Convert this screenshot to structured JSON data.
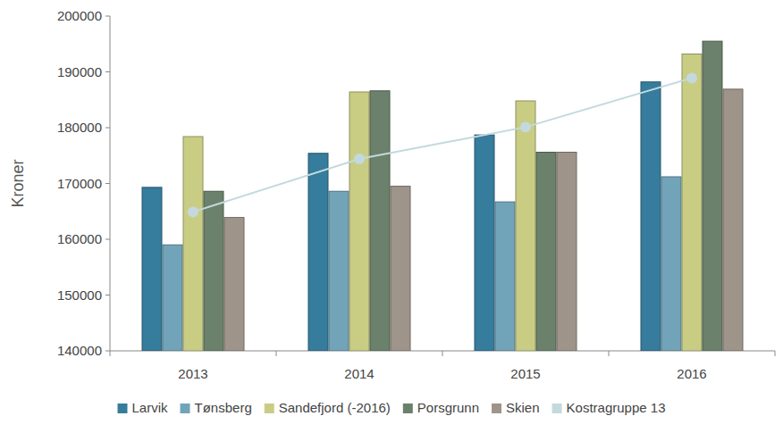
{
  "chart_data": {
    "type": "bar",
    "y_label": "Kroner",
    "categories": [
      "2013",
      "2014",
      "2015",
      "2016"
    ],
    "series": [
      {
        "name": "Larvik",
        "color": "#367c9c",
        "values": [
          169300,
          175400,
          178700,
          188200
        ]
      },
      {
        "name": "Tønsberg",
        "color": "#72a4b9",
        "values": [
          159000,
          168600,
          166700,
          171200
        ]
      },
      {
        "name": "Sandefjord (-2016)",
        "color": "#c9cd84",
        "values": [
          178400,
          186400,
          184800,
          193200
        ]
      },
      {
        "name": "Porsgrunn",
        "color": "#6b816b",
        "values": [
          168600,
          186600,
          175600,
          195500
        ]
      },
      {
        "name": "Skien",
        "color": "#9e948a",
        "values": [
          163900,
          169500,
          175600,
          186900
        ]
      },
      {
        "name": "Kostragruppe 13",
        "color": "#c3d9dd",
        "type": "line",
        "marker": "circle",
        "values": [
          164900,
          174400,
          180100,
          188900
        ]
      }
    ],
    "ylim": [
      140000,
      200000
    ],
    "yticks": [
      140000,
      150000,
      160000,
      170000,
      180000,
      190000,
      200000
    ],
    "grid": false,
    "legend": "bottom"
  }
}
